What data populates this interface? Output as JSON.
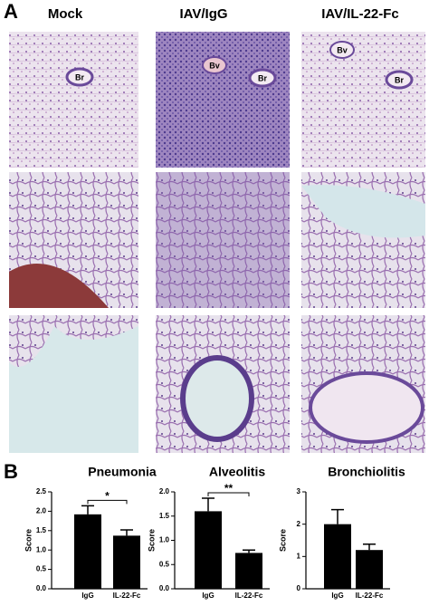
{
  "panel_a": {
    "label": "A",
    "columns": [
      "Mock",
      "IAV/IgG",
      "IAV/IL-22-Fc"
    ],
    "structure_labels": [
      "Br",
      "Bv",
      "Br",
      "Bv",
      "Br"
    ]
  },
  "panel_b_label": "B",
  "chart_data": [
    {
      "type": "bar",
      "title": "Pneumonia",
      "ylabel": "Score",
      "categories": [
        "IgG",
        "IL-22-Fc"
      ],
      "values": [
        1.92,
        1.37
      ],
      "errors": [
        0.22,
        0.15
      ],
      "color": "#000000",
      "annotation": "*",
      "ylim": [
        0,
        2.5
      ],
      "yticks": [
        {
          "value": 0,
          "label": "0.0"
        },
        {
          "value": 0.5,
          "label": "0.5"
        },
        {
          "value": 1,
          "label": "1.0"
        },
        {
          "value": 1.5,
          "label": "1.5"
        },
        {
          "value": 2,
          "label": "2.0"
        },
        {
          "value": 2.5,
          "label": "2.5"
        }
      ]
    },
    {
      "type": "bar",
      "title": "Alveolitis",
      "ylabel": "Score",
      "categories": [
        "IgG",
        "IL-22-Fc"
      ],
      "values": [
        1.6,
        0.74
      ],
      "errors": [
        0.27,
        0.06
      ],
      "color": "#000000",
      "annotation": "**",
      "ylim": [
        0,
        2
      ],
      "yticks": [
        {
          "value": 0,
          "label": "0.0"
        },
        {
          "value": 0.5,
          "label": "0.5"
        },
        {
          "value": 1,
          "label": "1.0"
        },
        {
          "value": 1.5,
          "label": "1.5"
        },
        {
          "value": 2,
          "label": "2.0"
        }
      ]
    },
    {
      "type": "bar",
      "title": "Bronchiolitis",
      "ylabel": "Score",
      "categories": [
        "IgG",
        "IL-22-Fc"
      ],
      "values": [
        2.0,
        1.2
      ],
      "errors": [
        0.45,
        0.18
      ],
      "color": "#000000",
      "ylim": [
        0,
        3
      ],
      "yticks": [
        0,
        1,
        2,
        3
      ]
    }
  ]
}
